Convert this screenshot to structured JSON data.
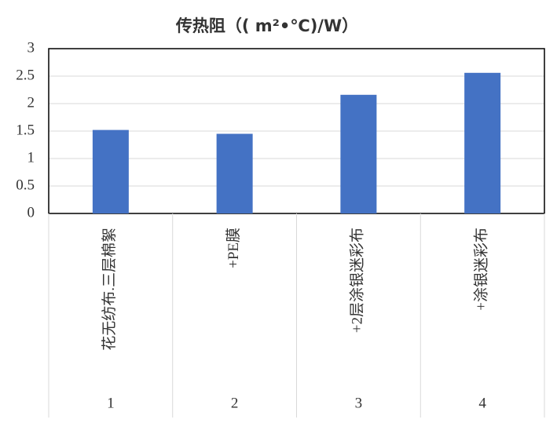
{
  "chart_data": {
    "type": "bar",
    "title": "传热阻（( m²•℃)/W）",
    "categories": [
      "1",
      "2",
      "3",
      "4"
    ],
    "category_labels": [
      "花无纺布.三层棉絮",
      "+PE膜",
      "+2层涂银迷彩布",
      "+涂银迷彩布"
    ],
    "values": [
      1.52,
      1.45,
      2.16,
      2.56
    ],
    "color": "#4472c4",
    "ylim": [
      0,
      3
    ],
    "yticks": [
      0,
      0.5,
      1,
      1.5,
      2,
      2.5,
      3
    ],
    "grid": true
  }
}
